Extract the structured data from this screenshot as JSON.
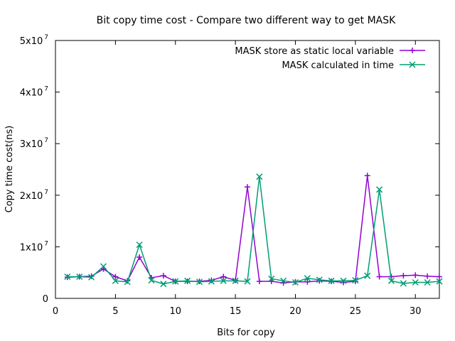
{
  "chart_data": {
    "type": "line",
    "title": "Bit copy time cost - Compare two different way to get MASK",
    "xlabel": "Bits for copy",
    "ylabel": "Copy time cost(ns)",
    "xlim": [
      0,
      32
    ],
    "ylim": [
      0,
      50000000
    ],
    "x_ticks": [
      0,
      5,
      10,
      15,
      20,
      25,
      30
    ],
    "y_ticks": [
      {
        "value": 0,
        "label": "0",
        "exp": ""
      },
      {
        "value": 10000000,
        "label": "1x10",
        "exp": "7"
      },
      {
        "value": 20000000,
        "label": "2x10",
        "exp": "7"
      },
      {
        "value": 30000000,
        "label": "3x10",
        "exp": "7"
      },
      {
        "value": 40000000,
        "label": "4x10",
        "exp": "7"
      },
      {
        "value": 50000000,
        "label": "5x10",
        "exp": "7"
      }
    ],
    "grid": false,
    "legend_position": "top-right",
    "x": [
      1,
      2,
      3,
      4,
      5,
      6,
      7,
      8,
      9,
      10,
      11,
      12,
      13,
      14,
      15,
      16,
      17,
      18,
      19,
      20,
      21,
      22,
      23,
      24,
      25,
      26,
      27,
      28,
      29,
      30,
      31,
      32
    ],
    "series": [
      {
        "name": "MASK store as static local variable",
        "color": "#9400d3",
        "marker": "plus",
        "values": [
          4100000,
          4200000,
          4300000,
          5700000,
          4200000,
          3400000,
          8000000,
          4000000,
          4400000,
          3300000,
          3300000,
          3300000,
          3500000,
          4200000,
          3500000,
          21600000,
          3300000,
          3300000,
          3000000,
          3200000,
          3200000,
          3400000,
          3300000,
          3100000,
          3300000,
          23800000,
          4200000,
          4200000,
          4400000,
          4500000,
          4300000,
          4200000
        ]
      },
      {
        "name": "MASK calculated in time",
        "color": "#009e73",
        "marker": "cross",
        "values": [
          4200000,
          4200000,
          4100000,
          6200000,
          3400000,
          3200000,
          10400000,
          3500000,
          2800000,
          3300000,
          3400000,
          3200000,
          3300000,
          3400000,
          3400000,
          3300000,
          23600000,
          3800000,
          3400000,
          3100000,
          3900000,
          3600000,
          3400000,
          3400000,
          3500000,
          4400000,
          21100000,
          3400000,
          2900000,
          3100000,
          3100000,
          3300000
        ]
      }
    ]
  }
}
